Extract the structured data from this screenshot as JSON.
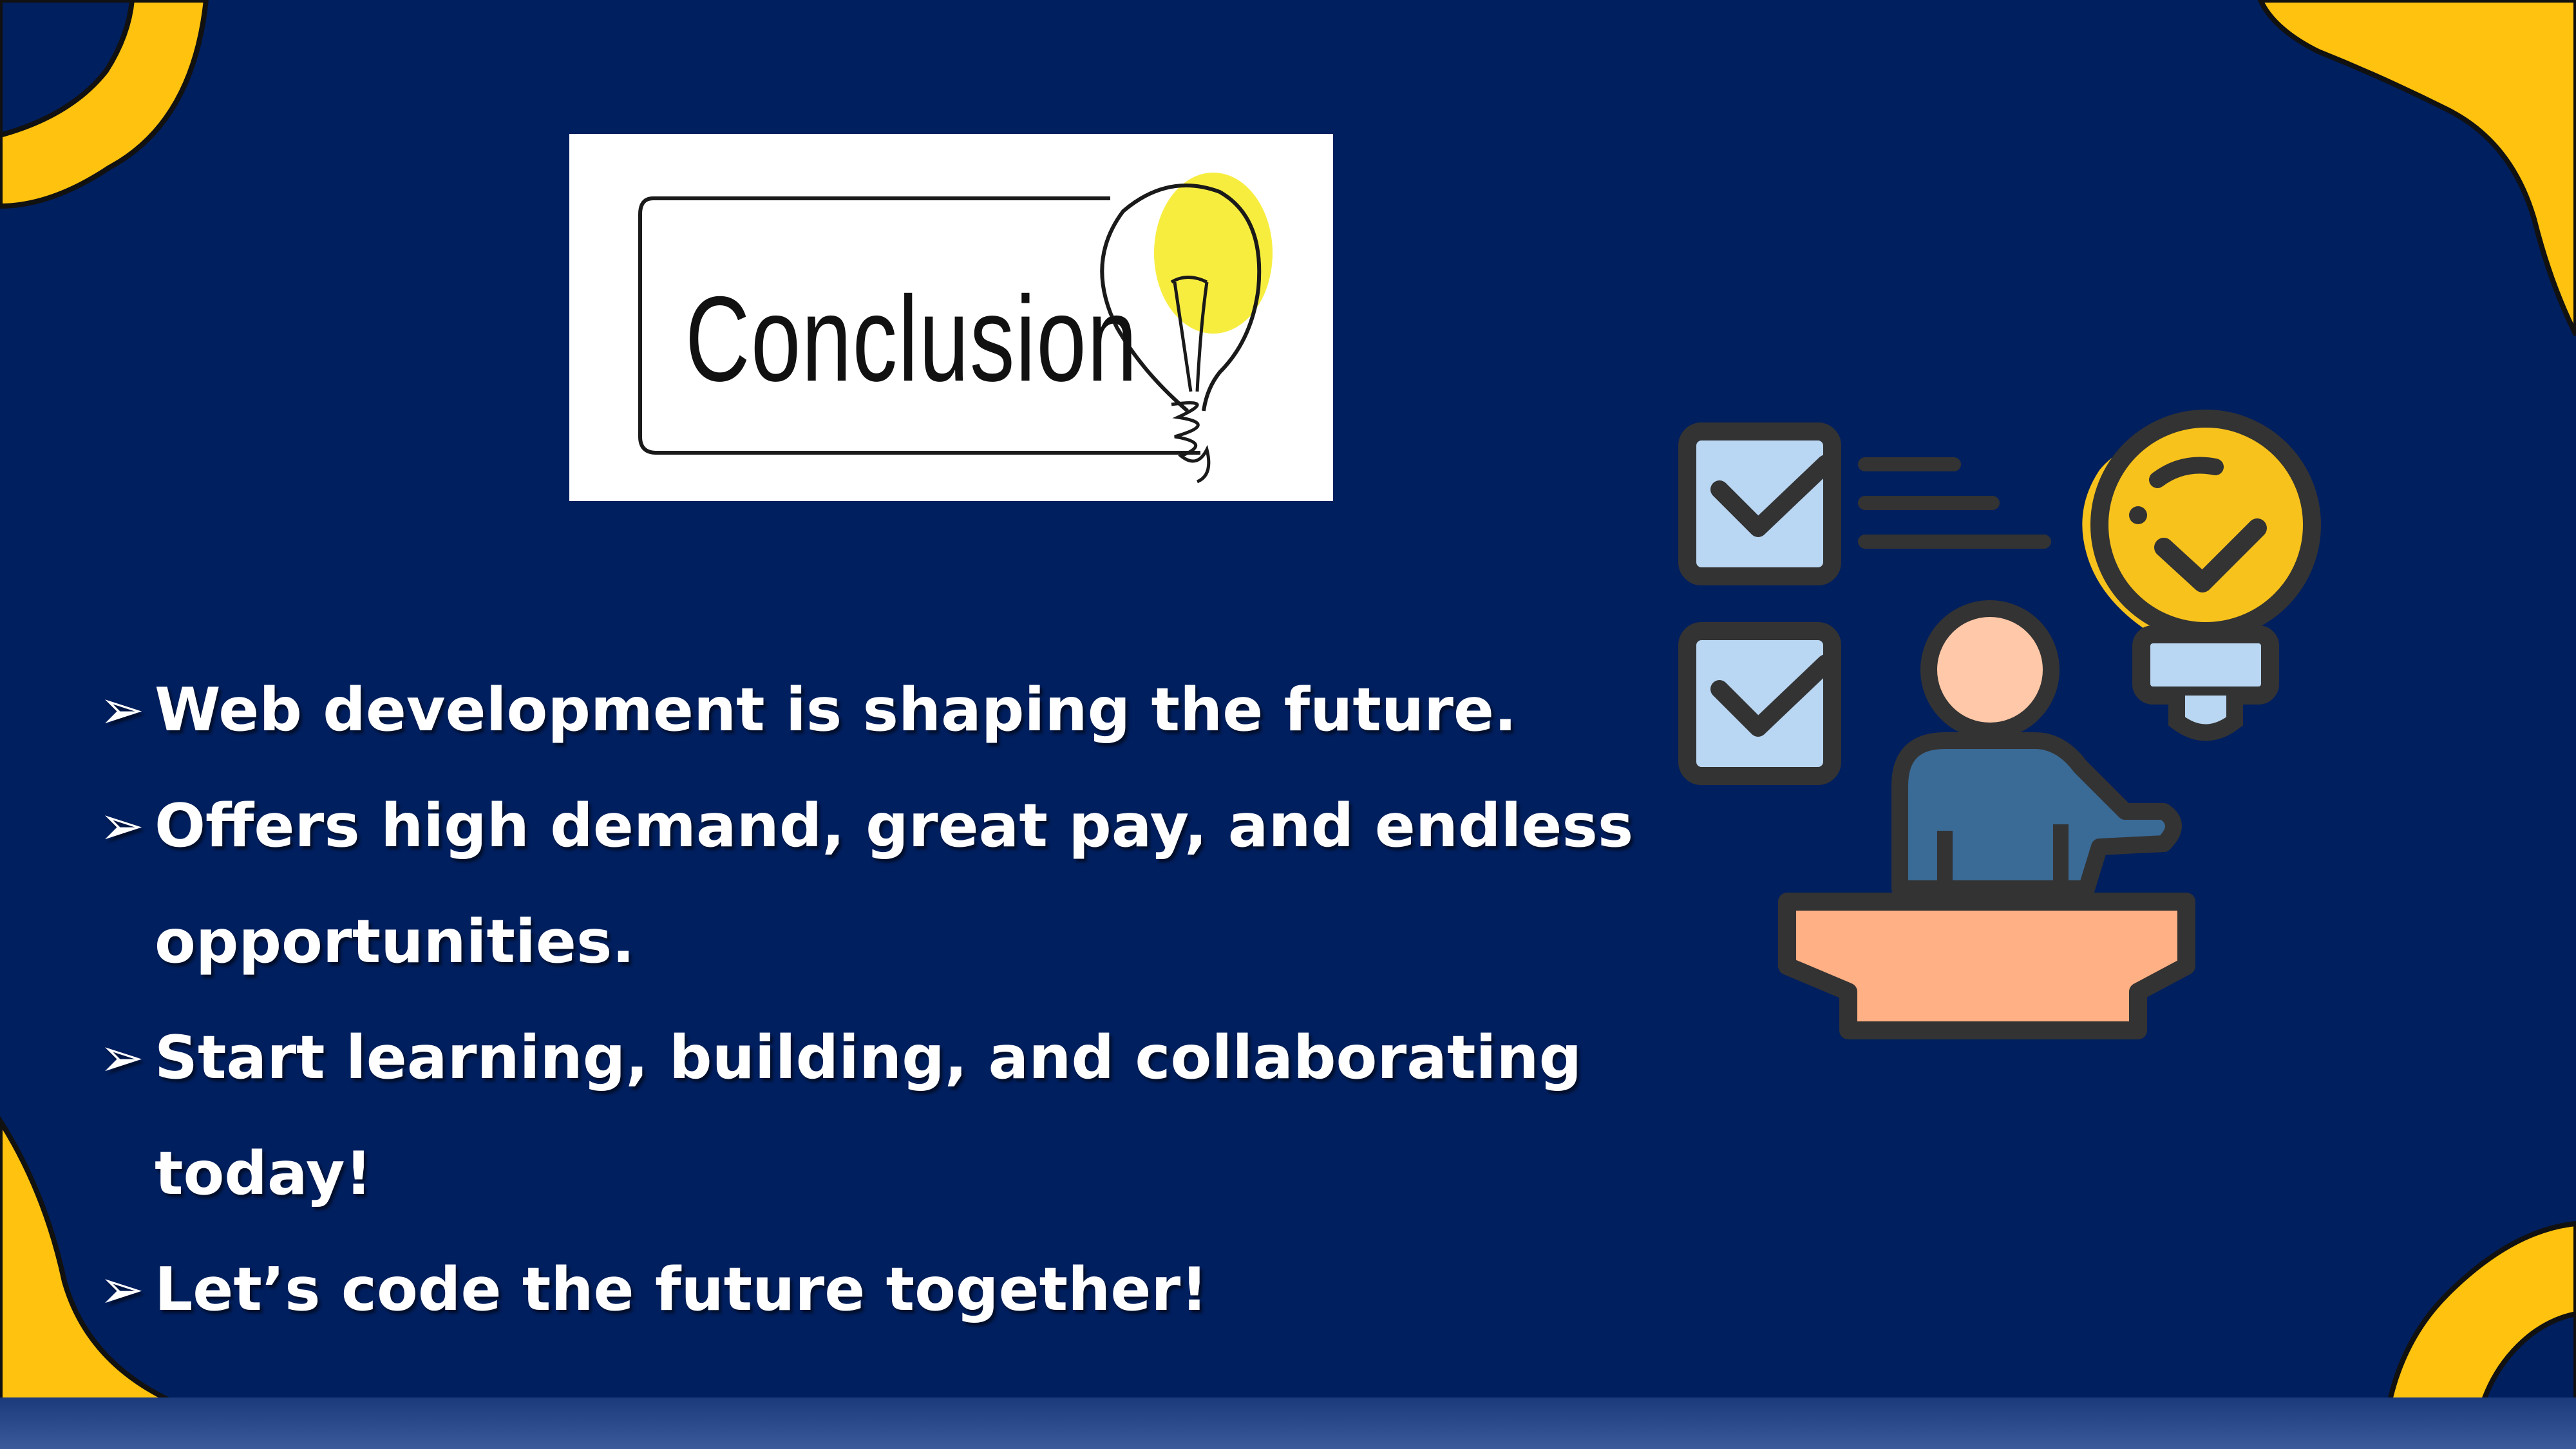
{
  "slide": {
    "title": "Conclusion",
    "bullet_marker": "➢",
    "bullets": [
      "Web development is shaping the future.",
      "Offers high demand, great pay, and endless opportunities.",
      "Start learning, building, and collaborating today!",
      "Let’s code the future together!"
    ]
  },
  "colors": {
    "background": "#001f5e",
    "accent": "#ffc20e",
    "bulb": "#f8c21c",
    "bulb_splash": "#f7ed3f",
    "checkbox": "#b9d6f2",
    "person_shirt": "#3a6a96",
    "person_head": "#ffc8a8",
    "podium": "#ffb084",
    "outline": "#333333"
  },
  "icons": [
    "lightbulb-icon",
    "checkbox-checked-icon",
    "presenter-icon"
  ]
}
